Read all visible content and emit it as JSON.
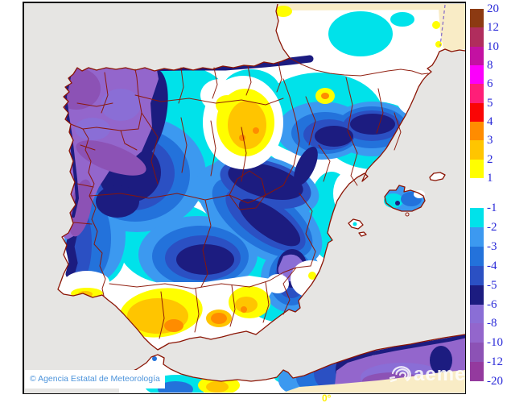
{
  "map": {
    "copyright": "© Agencia Estatal de Meteorología",
    "watermark": "aemet",
    "meridian_label": "0°",
    "colors": {
      "sea": "#E6E5E3",
      "outside_domain": "#F9ECC6",
      "coastline": "#8B1505",
      "legend_text": "#2A2AD8",
      "attribution_text": "#4D94DB",
      "meridian_text": "#FFEE00",
      "watermark_text": "#FFFFFF"
    }
  },
  "legend": {
    "positive": {
      "boundaries": [
        "20",
        "12",
        "10",
        "8",
        "6",
        "5",
        "4",
        "3",
        "2",
        "1"
      ],
      "colors": [
        "#8C3A12",
        "#B02D5D",
        "#C311A2",
        "#FB00FB",
        "#FF1E78",
        "#FA0505",
        "#FF8C00",
        "#FFC500",
        "#FFFE00"
      ]
    },
    "negative": {
      "boundaries": [
        "-1",
        "-2",
        "-3",
        "-4",
        "-5",
        "-6",
        "-8",
        "-10",
        "-12",
        "-20"
      ],
      "colors": [
        "#00E2EA",
        "#3C99F0",
        "#2372DB",
        "#2B50C3",
        "#1C1C80",
        "#8A6ED6",
        "#9366CC",
        "#8C52B5",
        "#943A9E"
      ]
    }
  }
}
